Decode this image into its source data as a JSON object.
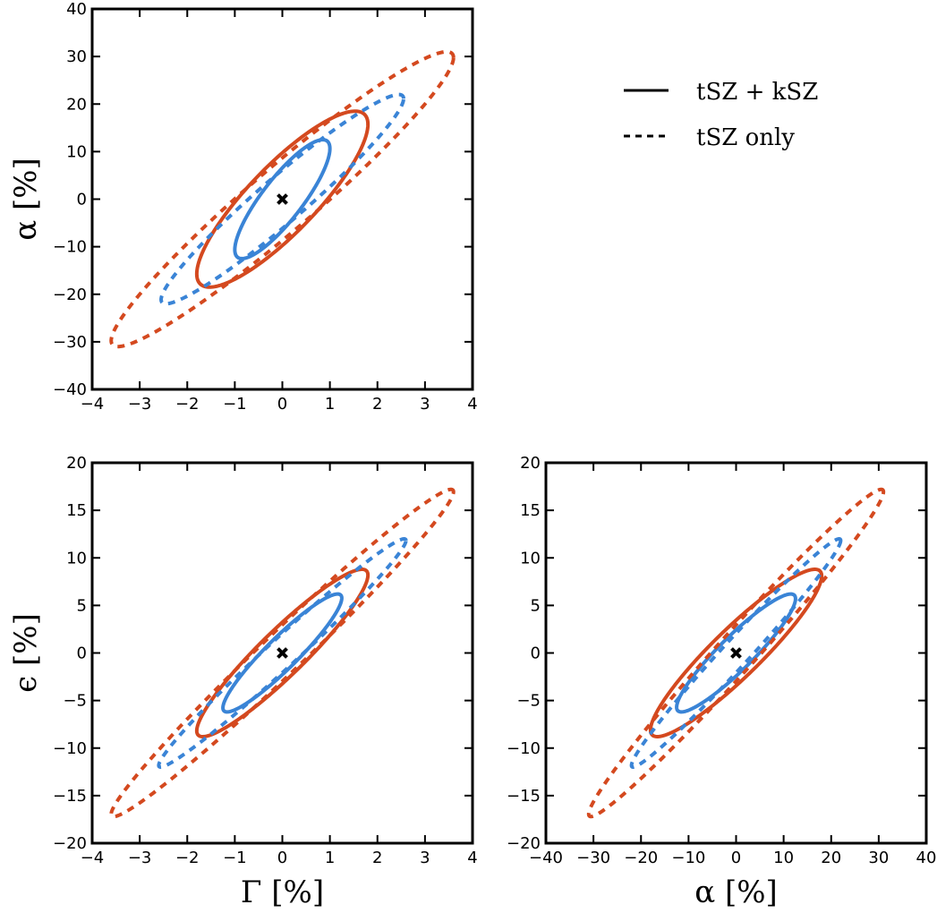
{
  "chart_data": {
    "type": "contour",
    "colors": {
      "inner": "#3a84d6",
      "outer": "#d4491f",
      "marker": "#000000"
    },
    "legend": {
      "placement": "top-right",
      "entries": [
        {
          "label": "tSZ + kSZ",
          "style": "solid"
        },
        {
          "label": "tSZ only",
          "style": "dashed"
        }
      ]
    },
    "panels": [
      {
        "id": "gamma-alpha",
        "xlabel": "Γ [%]",
        "ylabel": "α [%]",
        "xlim": [
          -4,
          4
        ],
        "ylim": [
          -40,
          40
        ],
        "xticks": [
          -4,
          -3,
          -2,
          -1,
          0,
          1,
          2,
          3,
          4
        ],
        "yticks": [
          -40,
          -30,
          -20,
          -10,
          0,
          10,
          20,
          30,
          40
        ],
        "show_xlabel": false,
        "fiducial": [
          0,
          0
        ],
        "ellipses": [
          {
            "name": "tSZ+kSZ inner",
            "ring": "inner",
            "style": "solid",
            "corner": [
              1.0,
              12.5
            ],
            "corr": 0.85
          },
          {
            "name": "tSZ+kSZ outer",
            "ring": "outer",
            "style": "solid",
            "corner": [
              1.8,
              18.5
            ],
            "corr": 0.85
          },
          {
            "name": "tSZ only inner",
            "ring": "inner",
            "style": "dashed",
            "corner": [
              2.55,
              22.0
            ],
            "corr": 0.96
          },
          {
            "name": "tSZ only outer",
            "ring": "outer",
            "style": "dashed",
            "corner": [
              3.6,
              31.0
            ],
            "corr": 0.96
          }
        ]
      },
      {
        "id": "gamma-epsilon",
        "xlabel": "Γ [%]",
        "ylabel": "ϵ [%]",
        "xlim": [
          -4,
          4
        ],
        "ylim": [
          -20,
          20
        ],
        "xticks": [
          -4,
          -3,
          -2,
          -1,
          0,
          1,
          2,
          3,
          4
        ],
        "yticks": [
          -20,
          -15,
          -10,
          -5,
          0,
          5,
          10,
          15,
          20
        ],
        "show_xlabel": true,
        "fiducial": [
          0,
          0
        ],
        "ellipses": [
          {
            "name": "tSZ+kSZ inner",
            "ring": "inner",
            "style": "solid",
            "corner": [
              1.25,
              6.2
            ],
            "corr": 0.93
          },
          {
            "name": "tSZ+kSZ outer",
            "ring": "outer",
            "style": "solid",
            "corner": [
              1.8,
              8.8
            ],
            "corr": 0.93
          },
          {
            "name": "tSZ only inner",
            "ring": "inner",
            "style": "dashed",
            "corner": [
              2.6,
              12.0
            ],
            "corr": 0.985
          },
          {
            "name": "tSZ only outer",
            "ring": "outer",
            "style": "dashed",
            "corner": [
              3.6,
              17.2
            ],
            "corr": 0.985
          }
        ]
      },
      {
        "id": "alpha-epsilon",
        "xlabel": "α [%]",
        "ylabel": "",
        "xlim": [
          -40,
          40
        ],
        "ylim": [
          -20,
          20
        ],
        "xticks": [
          -40,
          -30,
          -20,
          -10,
          0,
          10,
          20,
          30,
          40
        ],
        "yticks": [
          -20,
          -15,
          -10,
          -5,
          0,
          5,
          10,
          15,
          20
        ],
        "show_xlabel": true,
        "fiducial": [
          0,
          0
        ],
        "ellipses": [
          {
            "name": "tSZ+kSZ inner",
            "ring": "inner",
            "style": "solid",
            "corner": [
              12.5,
              6.2
            ],
            "corr": 0.92
          },
          {
            "name": "tSZ+kSZ outer",
            "ring": "outer",
            "style": "solid",
            "corner": [
              18.0,
              8.8
            ],
            "corr": 0.92
          },
          {
            "name": "tSZ only inner",
            "ring": "inner",
            "style": "dashed",
            "corner": [
              22.0,
              12.0
            ],
            "corr": 0.985
          },
          {
            "name": "tSZ only outer",
            "ring": "outer",
            "style": "dashed",
            "corner": [
              31.0,
              17.2
            ],
            "corr": 0.985
          }
        ]
      }
    ]
  }
}
